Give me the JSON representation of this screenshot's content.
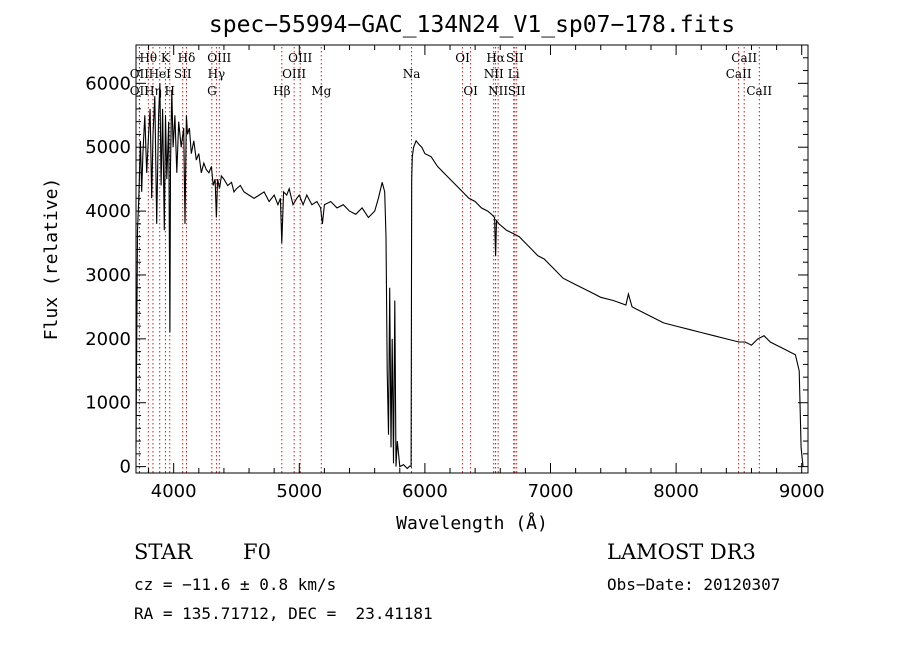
{
  "chart_data": {
    "type": "line",
    "title": "spec−55994−GAC_134N24_V1_sp07−178.fits",
    "xlabel": "Wavelength (Å)",
    "ylabel": "Flux (relative)",
    "xlim": [
      3700,
      9050
    ],
    "ylim": [
      -100,
      6600
    ],
    "xticks": [
      4000,
      5000,
      6000,
      7000,
      8000,
      9000
    ],
    "yticks": [
      0,
      1000,
      2000,
      3000,
      4000,
      5000,
      6000
    ],
    "grid": false,
    "line_color": "#000000",
    "marker_color": "#cc0000",
    "series": [
      {
        "x": [
          3700,
          3712,
          3722,
          3735,
          3745,
          3755,
          3770,
          3785,
          3800,
          3812,
          3825,
          3835,
          3850,
          3865,
          3880,
          3890,
          3900,
          3912,
          3925,
          3935,
          3945,
          3960,
          3970,
          3975,
          3985,
          3995,
          4010,
          4025,
          4040,
          4060,
          4080,
          4090,
          4101,
          4110,
          4125,
          4140,
          4160,
          4180,
          4200,
          4220,
          4240,
          4260,
          4280,
          4300,
          4315,
          4330,
          4340,
          4350,
          4365,
          4380,
          4400,
          4430,
          4460,
          4480,
          4500,
          4530,
          4560,
          4600,
          4640,
          4680,
          4720,
          4760,
          4800,
          4830,
          4850,
          4861,
          4875,
          4900,
          4920,
          4950,
          4980,
          5000,
          5030,
          5060,
          5100,
          5140,
          5170,
          5184,
          5200,
          5250,
          5300,
          5350,
          5400,
          5450,
          5500,
          5550,
          5600,
          5630,
          5660,
          5680,
          5690,
          5700,
          5710,
          5720,
          5730,
          5740,
          5750,
          5760,
          5770,
          5780,
          5800,
          5830,
          5860,
          5880,
          5890,
          5895,
          5900,
          5910,
          5930,
          5950,
          5975,
          6000,
          6050,
          6100,
          6150,
          6200,
          6250,
          6300,
          6350,
          6400,
          6450,
          6500,
          6530,
          6555,
          6563,
          6570,
          6590,
          6620,
          6650,
          6700,
          6750,
          6800,
          6850,
          6900,
          6950,
          7000,
          7100,
          7200,
          7300,
          7400,
          7500,
          7600,
          7620,
          7650,
          7700,
          7800,
          7900,
          8000,
          8100,
          8200,
          8300,
          8400,
          8500,
          8550,
          8600,
          8650,
          8700,
          8750,
          8800,
          8850,
          8900,
          8950,
          8980,
          8995,
          9010
        ],
        "y": [
          300,
          3700,
          4200,
          5100,
          4300,
          4900,
          5500,
          4600,
          5200,
          5600,
          4200,
          5200,
          5800,
          3800,
          5500,
          6000,
          4400,
          5600,
          3700,
          5500,
          4500,
          5400,
          2100,
          4700,
          5900,
          5000,
          5500,
          4600,
          5400,
          5000,
          5300,
          3800,
          5500,
          5200,
          5300,
          4900,
          5100,
          4800,
          4900,
          4600,
          4750,
          4650,
          4600,
          4700,
          4400,
          4500,
          3900,
          4500,
          4350,
          4550,
          4500,
          4400,
          4450,
          4300,
          4350,
          4400,
          4300,
          4250,
          4200,
          4250,
          4300,
          4150,
          4250,
          4100,
          4200,
          3500,
          4300,
          4250,
          4350,
          4100,
          4200,
          4250,
          4100,
          4250,
          4100,
          4150,
          4050,
          3800,
          4100,
          4150,
          4050,
          4100,
          4000,
          3950,
          4050,
          3900,
          4000,
          4200,
          4450,
          4300,
          3600,
          1500,
          500,
          2800,
          300,
          2000,
          50,
          2600,
          0,
          400,
          0,
          30,
          -30,
          10,
          0,
          4500,
          4850,
          5000,
          5100,
          5050,
          5000,
          4900,
          4850,
          4700,
          4600,
          4500,
          4400,
          4300,
          4200,
          4150,
          4050,
          4000,
          3950,
          3900,
          3300,
          3850,
          3800,
          3750,
          3700,
          3650,
          3600,
          3500,
          3400,
          3300,
          3250,
          3150,
          2950,
          2850,
          2750,
          2650,
          2600,
          2530,
          2700,
          2500,
          2450,
          2350,
          2250,
          2200,
          2150,
          2100,
          2050,
          2000,
          1950,
          1950,
          1900,
          2000,
          2050,
          1950,
          1900,
          1850,
          1800,
          1750,
          1500,
          300,
          0
        ]
      }
    ],
    "lines": [
      {
        "label": "Hθ",
        "wave": 3798,
        "row": 1
      },
      {
        "label": "OII",
        "wave": 3727,
        "row": 2
      },
      {
        "label": "OII",
        "wave": 3727,
        "row": 3
      },
      {
        "label": "Hη",
        "wave": 3835,
        "row": 3
      },
      {
        "label": "HeI",
        "wave": 3889,
        "row": 2
      },
      {
        "label": "K",
        "wave": 3934,
        "row": 1
      },
      {
        "label": "H",
        "wave": 3969,
        "row": 3
      },
      {
        "label": "SII",
        "wave": 4072,
        "row": 2
      },
      {
        "label": "Hδ",
        "wave": 4102,
        "row": 1
      },
      {
        "label": "OIII",
        "wave": 4363,
        "row": 1
      },
      {
        "label": "Hγ",
        "wave": 4340,
        "row": 2
      },
      {
        "label": "G",
        "wave": 4304,
        "row": 3
      },
      {
        "label": "Hβ",
        "wave": 4861,
        "row": 3
      },
      {
        "label": "OIII",
        "wave": 5007,
        "row": 1
      },
      {
        "label": "OIII",
        "wave": 4959,
        "row": 2
      },
      {
        "label": "Mg",
        "wave": 5175,
        "row": 3
      },
      {
        "label": "Na",
        "wave": 5894,
        "row": 2
      },
      {
        "label": "OI",
        "wave": 6300,
        "row": 1
      },
      {
        "label": "OI",
        "wave": 6364,
        "row": 3
      },
      {
        "label": "Hα",
        "wave": 6563,
        "row": 1
      },
      {
        "label": "NII",
        "wave": 6548,
        "row": 2
      },
      {
        "label": "NII",
        "wave": 6583,
        "row": 3
      },
      {
        "label": "SII",
        "wave": 6716,
        "row": 1
      },
      {
        "label": "Li",
        "wave": 6707,
        "row": 2
      },
      {
        "label": "SII",
        "wave": 6731,
        "row": 3
      },
      {
        "label": "CaII",
        "wave": 8542,
        "row": 1
      },
      {
        "label": "CaII",
        "wave": 8498,
        "row": 2
      },
      {
        "label": "CaII",
        "wave": 8662,
        "row": 3
      }
    ]
  },
  "info": {
    "class_label": "STAR",
    "subclass": "F0",
    "survey": "LAMOST DR3",
    "cz": "cz = −11.6 ± 0.8 km/s",
    "obs_date": "Obs−Date: 20120307",
    "coords": "RA = 135.71712, DEC =  23.41181"
  }
}
